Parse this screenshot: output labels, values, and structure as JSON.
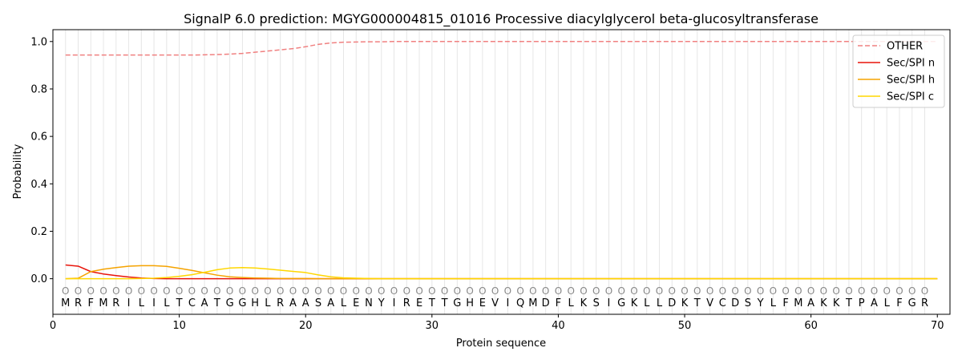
{
  "chart_data": {
    "type": "line",
    "title": "SignalP 6.0 prediction: MGYG000004815_01016 Processive diacylglycerol beta-glucosyltransferase",
    "xlabel": "Protein sequence",
    "ylabel": "Probability",
    "xlim": [
      0,
      71
    ],
    "ylim": [
      -0.15,
      1.05
    ],
    "x_ticks": [
      0,
      10,
      20,
      30,
      40,
      50,
      60,
      70
    ],
    "y_ticks": [
      0.0,
      0.2,
      0.4,
      0.6,
      0.8,
      1.0
    ],
    "grid": "vertical lines at each residue",
    "legend_position": "top-right",
    "sequence": [
      "M",
      "R",
      "F",
      "M",
      "R",
      "I",
      "L",
      "I",
      "L",
      "T",
      "C",
      "A",
      "T",
      "G",
      "G",
      "H",
      "L",
      "R",
      "A",
      "A",
      "S",
      "A",
      "L",
      "E",
      "N",
      "Y",
      "I",
      "R",
      "E",
      "T",
      "T",
      "G",
      "H",
      "E",
      "V",
      "I",
      "Q",
      "M",
      "D",
      "F",
      "L",
      "K",
      "S",
      "I",
      "G",
      "K",
      "L",
      "L",
      "D",
      "K",
      "T",
      "V",
      "C",
      "D",
      "S",
      "Y",
      "L",
      "F",
      "M",
      "A",
      "K",
      "K",
      "T",
      "P",
      "A",
      "L",
      "F",
      "G",
      "R"
    ],
    "region_label": "O",
    "series": [
      {
        "name": "OTHER",
        "color": "#f08080",
        "style": "dashed",
        "values": [
          0.943,
          0.943,
          0.943,
          0.943,
          0.943,
          0.943,
          0.943,
          0.943,
          0.943,
          0.943,
          0.943,
          0.944,
          0.945,
          0.947,
          0.95,
          0.955,
          0.96,
          0.965,
          0.97,
          0.978,
          0.988,
          0.994,
          0.997,
          0.998,
          0.999,
          0.999,
          1,
          1,
          1,
          1,
          1,
          1,
          1,
          1,
          1,
          1,
          1,
          1,
          1,
          1,
          1,
          1,
          1,
          1,
          1,
          1,
          1,
          1,
          1,
          1,
          1,
          1,
          1,
          1,
          1,
          1,
          1,
          1,
          1,
          1,
          1,
          1,
          1,
          1,
          1,
          1,
          1,
          1,
          1,
          1
        ]
      },
      {
        "name": "Sec/SPI n",
        "color": "#e8140a",
        "style": "solid",
        "values": [
          0.058,
          0.053,
          0.03,
          0.02,
          0.013,
          0.007,
          0.003,
          0.001,
          0,
          0,
          0,
          0,
          0,
          0,
          0,
          0,
          0,
          0,
          0,
          0,
          0,
          0,
          0,
          0,
          0,
          0,
          0,
          0,
          0,
          0,
          0,
          0,
          0,
          0,
          0,
          0,
          0,
          0,
          0,
          0,
          0,
          0,
          0,
          0,
          0,
          0,
          0,
          0,
          0,
          0,
          0,
          0,
          0,
          0,
          0,
          0,
          0,
          0,
          0,
          0,
          0,
          0,
          0,
          0,
          0,
          0,
          0,
          0,
          0,
          0
        ]
      },
      {
        "name": "Sec/SPI h",
        "color": "#f5a300",
        "style": "solid",
        "values": [
          0,
          0.002,
          0.03,
          0.04,
          0.047,
          0.053,
          0.055,
          0.055,
          0.052,
          0.044,
          0.035,
          0.025,
          0.015,
          0.008,
          0.005,
          0.003,
          0.002,
          0.001,
          0.001,
          0.001,
          0,
          0,
          0,
          0,
          0,
          0,
          0,
          0,
          0,
          0,
          0,
          0,
          0,
          0,
          0,
          0,
          0,
          0,
          0,
          0,
          0,
          0,
          0,
          0,
          0,
          0,
          0,
          0,
          0,
          0,
          0,
          0,
          0,
          0,
          0,
          0,
          0,
          0,
          0,
          0,
          0,
          0,
          0,
          0,
          0,
          0,
          0,
          0,
          0,
          0
        ]
      },
      {
        "name": "Sec/SPI c",
        "color": "#ffd700",
        "style": "solid",
        "values": [
          0,
          0,
          0,
          0,
          0,
          0,
          0.001,
          0.002,
          0.005,
          0.01,
          0.017,
          0.027,
          0.038,
          0.045,
          0.047,
          0.045,
          0.041,
          0.036,
          0.031,
          0.026,
          0.016,
          0.008,
          0.004,
          0.002,
          0.001,
          0,
          0,
          0,
          0,
          0,
          0,
          0,
          0,
          0,
          0,
          0,
          0,
          0,
          0,
          0,
          0,
          0,
          0,
          0,
          0,
          0,
          0,
          0,
          0,
          0,
          0,
          0,
          0,
          0,
          0,
          0,
          0,
          0,
          0,
          0,
          0,
          0,
          0,
          0,
          0,
          0,
          0,
          0,
          0,
          0
        ]
      }
    ]
  }
}
